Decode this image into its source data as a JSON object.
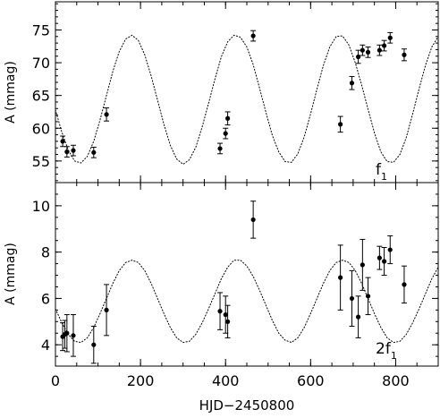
{
  "chart_data": [
    {
      "type": "scatter",
      "panel_label": "f",
      "panel_label_sub": "1",
      "ylabel": "A (mmag)",
      "xlabel": "",
      "xlim": [
        0,
        900
      ],
      "ylim": [
        51.7,
        79.3
      ],
      "yticks": [
        55,
        60,
        65,
        70,
        75
      ],
      "ytick_labels": [
        "55",
        "60",
        "65",
        "70",
        "75"
      ],
      "y_minor_step": 1,
      "series": [
        {
          "x": [
            17,
            27,
            42,
            90,
            120,
            387,
            400,
            405,
            465,
            670,
            697,
            712,
            722,
            735,
            762,
            773,
            787,
            820
          ],
          "y": [
            58.0,
            56.4,
            56.6,
            56.3,
            62.1,
            56.9,
            59.2,
            61.5,
            74.1,
            60.6,
            66.9,
            70.9,
            71.9,
            71.6,
            71.9,
            72.6,
            73.8,
            71.2
          ],
          "err": [
            0.8,
            0.8,
            0.8,
            0.8,
            1.0,
            0.8,
            0.8,
            1.0,
            0.8,
            1.2,
            1.0,
            1.0,
            0.8,
            0.8,
            0.8,
            0.8,
            0.8,
            0.9
          ]
        }
      ],
      "model": {
        "style": "dotted",
        "x": [
          0,
          15,
          30,
          45,
          60,
          75,
          90,
          105,
          120,
          135,
          150,
          165,
          180,
          195,
          210,
          225,
          240,
          255,
          270,
          285,
          300,
          315,
          330,
          345,
          360,
          375,
          390,
          405,
          420,
          435,
          450,
          465,
          480,
          495,
          510,
          525,
          540,
          555,
          570,
          585,
          600,
          615,
          630,
          645,
          660,
          675,
          690,
          705,
          720,
          735,
          750,
          765,
          780,
          795,
          810,
          825,
          840,
          855,
          870,
          885,
          900
        ],
        "y": [
          62.8,
          59.4,
          56.7,
          55.0,
          54.7,
          55.7,
          58.0,
          61.3,
          65.0,
          68.7,
          71.7,
          73.6,
          74.2,
          73.4,
          71.2,
          68.0,
          64.3,
          60.6,
          57.4,
          55.3,
          54.5,
          55.2,
          57.1,
          60.2,
          63.8,
          67.5,
          70.9,
          73.2,
          74.2,
          73.9,
          72.4,
          69.7,
          66.1,
          62.4,
          58.9,
          56.4,
          54.9,
          54.8,
          56.1,
          58.7,
          62.2,
          66.0,
          69.6,
          72.4,
          74.0,
          74.1,
          72.7,
          70.0,
          66.6,
          62.9,
          59.3,
          56.4,
          54.9,
          54.8,
          56.0,
          58.6,
          62.2,
          66.0,
          69.6,
          72.4,
          74.0
        ]
      }
    },
    {
      "type": "scatter",
      "panel_label": "2f",
      "panel_label_sub": "1",
      "ylabel": "A (mmag)",
      "xlabel": "HJD−2450800",
      "xlim": [
        0,
        900
      ],
      "ylim": [
        3.08,
        11.0
      ],
      "xticks": [
        0,
        200,
        400,
        600,
        800
      ],
      "xtick_labels": [
        "0",
        "200",
        "400",
        "600",
        "800"
      ],
      "x_minor_step": 50,
      "yticks": [
        4,
        6,
        8,
        10
      ],
      "ytick_labels": [
        "4",
        "6",
        "8",
        "10"
      ],
      "y_minor_step": 0.5,
      "series": [
        {
          "x": [
            17,
            22,
            27,
            42,
            90,
            120,
            387,
            400,
            405,
            465,
            670,
            697,
            712,
            722,
            735,
            762,
            773,
            787,
            820
          ],
          "y": [
            4.35,
            4.45,
            4.5,
            4.4,
            4.0,
            5.5,
            5.45,
            5.3,
            5.0,
            9.4,
            6.9,
            6.0,
            5.2,
            7.45,
            6.1,
            7.75,
            7.6,
            8.1,
            6.6
          ],
          "err": [
            0.6,
            0.6,
            0.8,
            0.9,
            0.8,
            1.1,
            0.8,
            0.8,
            0.7,
            0.8,
            1.4,
            1.2,
            0.9,
            1.1,
            0.8,
            0.5,
            0.6,
            0.6,
            0.8
          ]
        }
      ],
      "model": {
        "style": "dotted",
        "x": [
          0,
          15,
          30,
          45,
          60,
          75,
          90,
          105,
          120,
          135,
          150,
          165,
          180,
          195,
          210,
          225,
          240,
          255,
          270,
          285,
          300,
          315,
          330,
          345,
          360,
          375,
          390,
          405,
          420,
          435,
          450,
          465,
          480,
          495,
          510,
          525,
          540,
          555,
          570,
          585,
          600,
          615,
          630,
          645,
          660,
          675,
          690,
          705,
          720,
          735,
          750,
          765,
          780,
          795,
          810,
          825,
          840,
          855,
          870,
          885,
          900
        ],
        "y": [
          5.55,
          4.95,
          4.45,
          4.15,
          4.1,
          4.3,
          4.75,
          5.35,
          6.0,
          6.65,
          7.2,
          7.55,
          7.65,
          7.55,
          7.2,
          6.65,
          6.0,
          5.35,
          4.75,
          4.3,
          4.1,
          4.15,
          4.45,
          4.95,
          5.55,
          6.2,
          6.85,
          7.35,
          7.65,
          7.65,
          7.4,
          6.95,
          6.35,
          5.7,
          5.05,
          4.5,
          4.2,
          4.1,
          4.3,
          4.75,
          5.35,
          6.0,
          6.65,
          7.2,
          7.55,
          7.65,
          7.55,
          7.2,
          6.65,
          6.0,
          5.35,
          4.75,
          4.3,
          4.1,
          4.15,
          4.45,
          4.95,
          5.55,
          6.2,
          6.85,
          7.35
        ]
      }
    }
  ]
}
